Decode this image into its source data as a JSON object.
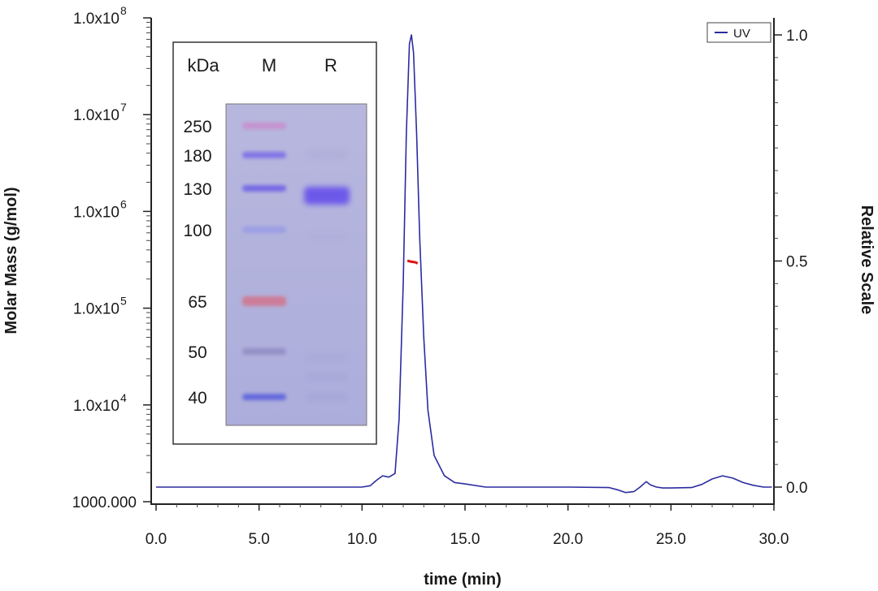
{
  "chart_data": {
    "type": "line",
    "title": "",
    "xlabel": "time (min)",
    "ylabel_left": "Molar Mass (g/mol)",
    "ylabel_right": "Relative Scale",
    "x_range": [
      0,
      30
    ],
    "x_ticks": [
      "0.0",
      "5.0",
      "10.0",
      "15.0",
      "20.0",
      "25.0",
      "30.0"
    ],
    "x_tick_values": [
      0,
      5,
      10,
      15,
      20,
      25,
      30
    ],
    "y_left_scale": "log",
    "y_left_range": [
      1000,
      100000000
    ],
    "y_left_ticks": [
      {
        "value": 1000,
        "mantissa": "1000.000",
        "exp": ""
      },
      {
        "value": 10000,
        "mantissa": "1.0x10",
        "exp": "4"
      },
      {
        "value": 100000,
        "mantissa": "1.0x10",
        "exp": "5"
      },
      {
        "value": 1000000,
        "mantissa": "1.0x10",
        "exp": "6"
      },
      {
        "value": 10000000,
        "mantissa": "1.0x10",
        "exp": "7"
      },
      {
        "value": 100000000,
        "mantissa": "1.0x10",
        "exp": "8"
      }
    ],
    "y_right_range": [
      0,
      1.0
    ],
    "y_right_ticks": [
      "0.0",
      "0.5",
      "1.0"
    ],
    "y_right_tick_values": [
      0,
      0.5,
      1.0
    ],
    "grid": false,
    "legend": {
      "position": "top-right",
      "entries": [
        {
          "label": "UV",
          "color": "#2b2ba0"
        }
      ]
    },
    "series": [
      {
        "name": "UV",
        "axis": "right",
        "color": "#2b2ba0",
        "x": [
          0.0,
          5.0,
          9.0,
          10.0,
          10.4,
          10.7,
          11.0,
          11.3,
          11.6,
          11.8,
          12.0,
          12.15,
          12.3,
          12.4,
          12.5,
          12.65,
          12.8,
          13.0,
          13.2,
          13.5,
          14.0,
          14.5,
          15.0,
          16.0,
          18.0,
          20.0,
          22.0,
          22.4,
          22.8,
          23.2,
          23.5,
          23.8,
          24.0,
          24.3,
          24.6,
          25.0,
          26.0,
          26.5,
          27.0,
          27.5,
          28.0,
          28.5,
          29.0,
          29.5,
          29.9
        ],
        "y": [
          0.0,
          0.0,
          0.0,
          0.0,
          0.003,
          0.015,
          0.025,
          0.022,
          0.03,
          0.15,
          0.45,
          0.78,
          0.98,
          1.0,
          0.96,
          0.78,
          0.55,
          0.33,
          0.17,
          0.07,
          0.025,
          0.01,
          0.007,
          0.0,
          0.0,
          0.0,
          -0.001,
          -0.006,
          -0.012,
          -0.01,
          0.0,
          0.012,
          0.005,
          0.0,
          -0.002,
          -0.002,
          -0.001,
          0.006,
          0.018,
          0.025,
          0.02,
          0.01,
          0.004,
          0.0,
          0.0
        ]
      },
      {
        "name": "",
        "axis": "left",
        "color": "#e01010",
        "x": [
          12.2,
          12.3,
          12.4,
          12.5,
          12.6,
          12.7
        ],
        "y": [
          310000,
          305000,
          302000,
          300000,
          297000,
          290000
        ]
      }
    ],
    "inset": {
      "type": "gel",
      "header": {
        "units": "kDa",
        "lane_marker": "M",
        "lane_sample": "R"
      },
      "markers": [
        "250",
        "180",
        "130",
        "100",
        "65",
        "50",
        "40"
      ],
      "marker_band_colors": [
        "#c88fcf",
        "#7b6ee6",
        "#6f63e6",
        "#9a9ce6",
        "#d07890",
        "#8f8cc4",
        "#5d62dc"
      ],
      "sample_band": {
        "label": "R",
        "aligned_with": "130",
        "color": "#6a54ea"
      },
      "gel_background": "#b4b4dc"
    }
  }
}
